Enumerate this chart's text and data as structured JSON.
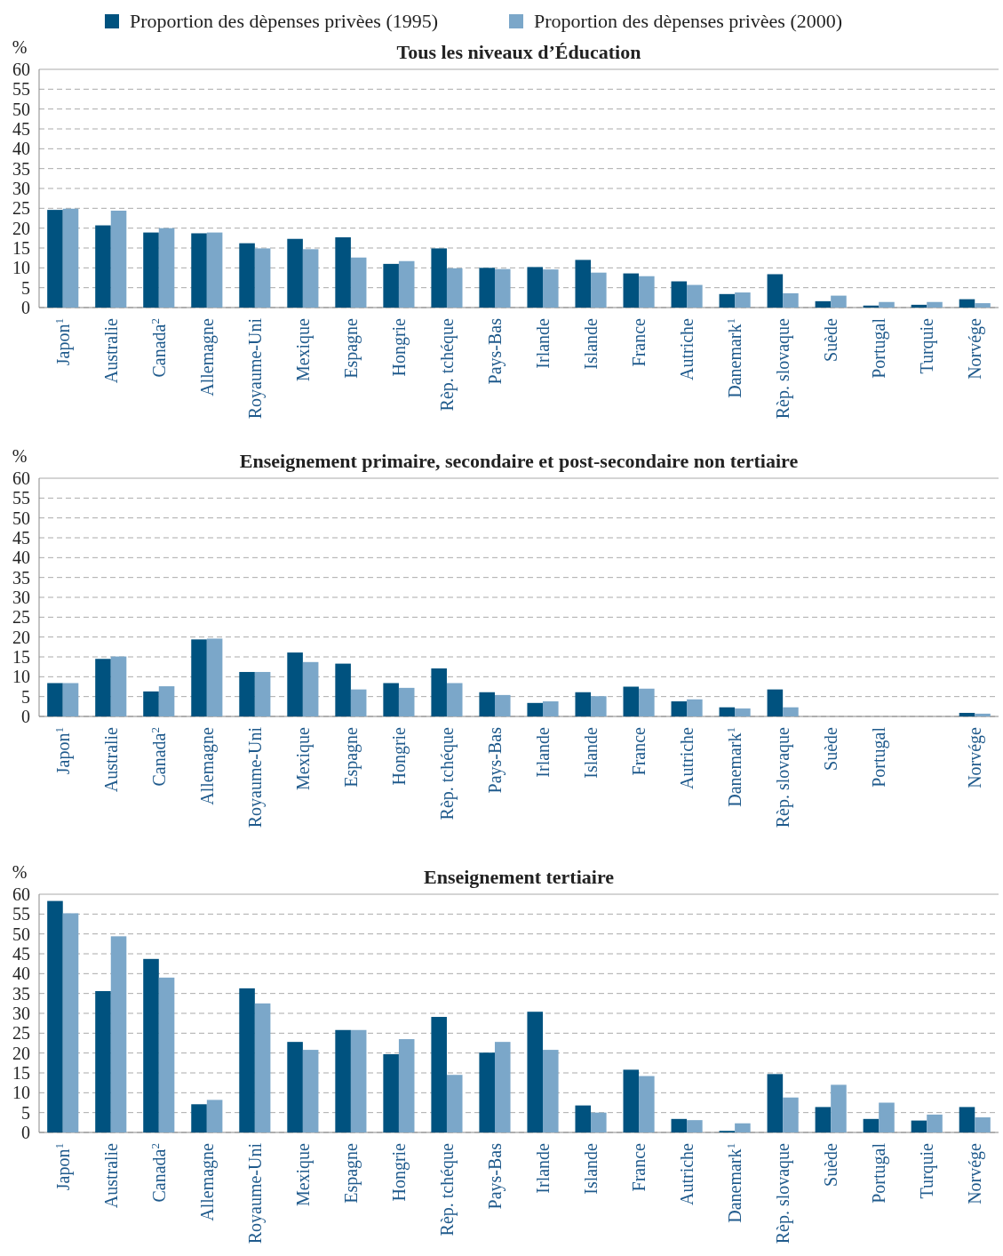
{
  "chart_data": [
    {
      "type": "bar",
      "title": "Tous les niveaux d’Éducation",
      "ylabel": "%",
      "categories": [
        "Japon$^{1}$",
        "Australie",
        "Canada$^{2}$",
        "Allemagne",
        "Royaume-Uni",
        "Mexique",
        "Espagne",
        "Hongrie",
        "Rèp. tchéque",
        "Pays-Bas",
        "Irlande",
        "Islande",
        "France",
        "Autriche",
        "Danemark$^{1}$",
        "Rèp. slovaque",
        "Suède",
        "Portugal",
        "Turquie",
        "Norvége"
      ],
      "ylim": [
        0,
        60
      ],
      "yticks": [
        0,
        5,
        10,
        15,
        20,
        25,
        30,
        35,
        40,
        45,
        50,
        55,
        60
      ],
      "grid": "y",
      "legend": "top",
      "series": [
        {
          "name": "Proportion des dèpenses privèes (1995)",
          "color": "#00527f",
          "values": [
            24.6,
            20.7,
            18.9,
            18.7,
            16.2,
            17.3,
            17.7,
            11.0,
            14.9,
            10.0,
            10.2,
            12.0,
            8.6,
            6.6,
            3.4,
            8.4,
            1.6,
            0.5,
            0.7,
            2.1
          ]
        },
        {
          "name": "Proportion des dèpenses privèes (2000)",
          "color": "#7ba7c9",
          "values": [
            24.9,
            24.4,
            20.0,
            18.9,
            14.9,
            14.7,
            12.6,
            11.7,
            9.9,
            9.7,
            9.6,
            8.8,
            7.9,
            5.7,
            3.8,
            3.6,
            3.0,
            1.4,
            1.4,
            1.1
          ]
        }
      ]
    },
    {
      "type": "bar",
      "title": "Enseignement primaire, secondaire et post-secondaire non tertiaire",
      "ylabel": "%",
      "categories": [
        "Japon$^{1}$",
        "Australie",
        "Canada$^{2}$",
        "Allemagne",
        "Royaume-Uni",
        "Mexique",
        "Espagne",
        "Hongrie",
        "Rèp. tchéque",
        "Pays-Bas",
        "Irlande",
        "Islande",
        "France",
        "Autriche",
        "Danemark$^{1}$",
        "Rèp. slovaque",
        "Suède",
        "Portugal",
        null,
        "Norvége"
      ],
      "ylim": [
        0,
        60
      ],
      "yticks": [
        0,
        5,
        10,
        15,
        20,
        25,
        30,
        35,
        40,
        45,
        50,
        55,
        60
      ],
      "grid": "y",
      "series": [
        {
          "color": "#00527f",
          "values": [
            8.4,
            14.5,
            6.3,
            19.4,
            11.2,
            16.1,
            13.3,
            8.4,
            12.1,
            6.1,
            3.4,
            6.1,
            7.5,
            3.8,
            2.3,
            6.8,
            null,
            null,
            null,
            0.9
          ]
        },
        {
          "color": "#7ba7c9",
          "values": [
            8.4,
            15.1,
            7.6,
            19.6,
            11.2,
            13.7,
            6.8,
            7.2,
            8.4,
            5.4,
            3.8,
            5.1,
            7.0,
            4.3,
            2.0,
            2.3,
            null,
            null,
            null,
            0.7
          ]
        }
      ]
    },
    {
      "type": "bar",
      "title": "Enseignement tertiaire",
      "ylabel": "%",
      "categories": [
        "Japon$^{1}$",
        "Australie",
        "Canada$^{2}$",
        "Allemagne",
        "Royaume-Uni",
        "Mexique",
        "Espagne",
        "Hongrie",
        "Rèp. tchéque",
        "Pays-Bas",
        "Irlande",
        "Islande",
        "France",
        "Autriche",
        "Danemark$^{1}$",
        "Rèp. slovaque",
        "Suède",
        "Portugal",
        "Turquie",
        "Norvége"
      ],
      "ylim": [
        0,
        60
      ],
      "yticks": [
        0,
        5,
        10,
        15,
        20,
        25,
        30,
        35,
        40,
        45,
        50,
        55,
        60
      ],
      "grid": "y",
      "series": [
        {
          "color": "#00527f",
          "values": [
            58.3,
            35.6,
            43.7,
            7.1,
            36.3,
            22.8,
            25.8,
            19.7,
            29.1,
            20.1,
            30.4,
            6.8,
            15.8,
            3.4,
            0.4,
            14.7,
            6.4,
            3.4,
            3.0,
            6.4
          ]
        },
        {
          "color": "#7ba7c9",
          "values": [
            55.2,
            49.4,
            39.0,
            8.2,
            32.5,
            20.8,
            25.8,
            23.5,
            14.5,
            22.8,
            20.8,
            5.0,
            14.2,
            3.1,
            2.3,
            8.8,
            12.0,
            7.5,
            4.5,
            3.8
          ]
        }
      ]
    }
  ]
}
